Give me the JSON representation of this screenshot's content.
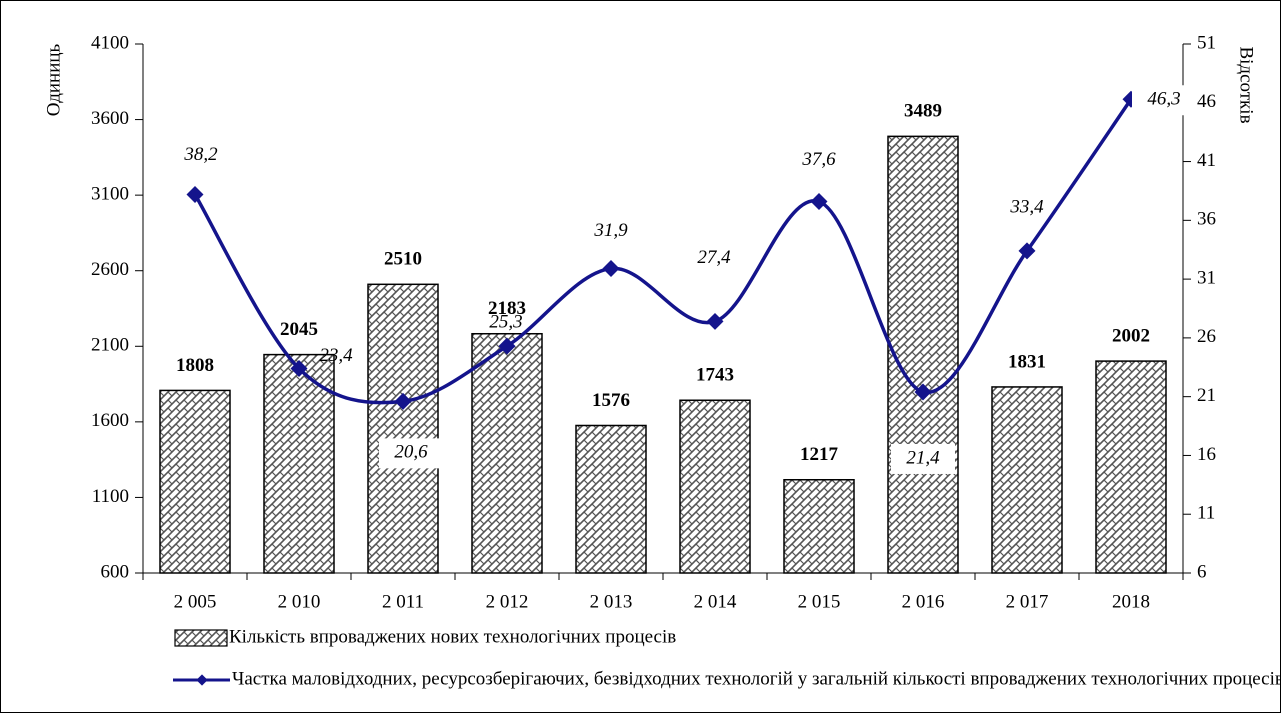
{
  "chart_data": {
    "type": "combo",
    "categories": [
      "2 005",
      "2 010",
      "2 011",
      "2 012",
      "2 013",
      "2 014",
      "2 015",
      "2 016",
      "2 017",
      "2018"
    ],
    "ylabel": "Одиниць",
    "y2label": "Відсотків",
    "ylim": [
      600,
      4100
    ],
    "yticks": [
      600,
      1100,
      1600,
      2100,
      2600,
      3100,
      3600,
      4100
    ],
    "y2lim": [
      6,
      51
    ],
    "y2ticks": [
      6,
      11,
      16,
      21,
      26,
      31,
      36,
      41,
      46,
      51
    ],
    "series": [
      {
        "name": "Кількість впроваджених нових технологічних процесів",
        "type": "bar",
        "color": "#808080",
        "values": [
          1808,
          2045,
          2510,
          2183,
          1576,
          1743,
          1217,
          3489,
          1831,
          2002
        ]
      },
      {
        "name": "Частка маловідходних, ресурсозберігаючих, безвідходних технологій у загальній кількості впроваджених технологічних процесів",
        "type": "line",
        "axis": "y2",
        "color": "#14148c",
        "values": [
          38.2,
          23.4,
          20.6,
          25.3,
          31.9,
          27.4,
          37.6,
          21.4,
          33.4,
          46.3
        ],
        "value_labels": [
          "38,2",
          "23,4",
          "20,6",
          "25,3",
          "31,9",
          "27,4",
          "37,6",
          "21,4",
          "33,4",
          "46,3"
        ]
      }
    ]
  }
}
